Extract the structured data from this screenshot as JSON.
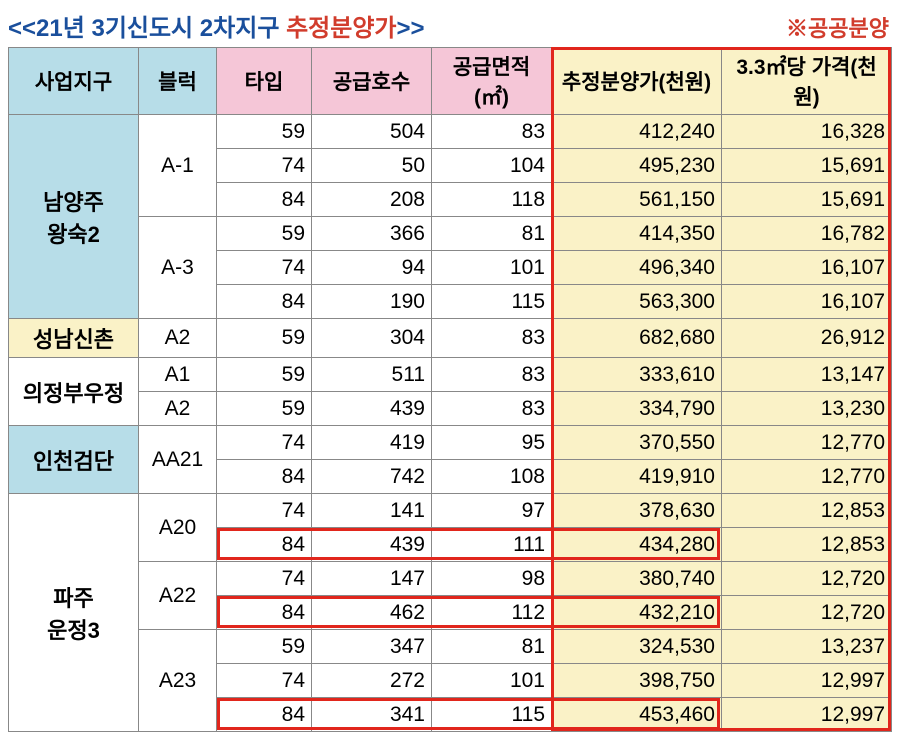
{
  "title_prefix": "<<21년 3기신도시 2차지구 ",
  "title_accent": "추정분양가",
  "title_suffix": ">>",
  "note": "※공공분양",
  "headers": {
    "district": "사업지구",
    "block": "블럭",
    "type": "타입",
    "units": "공급호수",
    "area": "공급면적(㎡)",
    "price": "추정분양가(천원)",
    "per33": "3.3㎡당 가격(천원)"
  },
  "districts": [
    {
      "name": "남양주\n왕숙2",
      "cls": "dist-blue",
      "blocks": [
        {
          "name": "A-1",
          "rows": [
            {
              "type": "59",
              "units": "504",
              "area": "83",
              "price": "412,240",
              "per": "16,328"
            },
            {
              "type": "74",
              "units": "50",
              "area": "104",
              "price": "495,230",
              "per": "15,691"
            },
            {
              "type": "84",
              "units": "208",
              "area": "118",
              "price": "561,150",
              "per": "15,691"
            }
          ]
        },
        {
          "name": "A-3",
          "rows": [
            {
              "type": "59",
              "units": "366",
              "area": "81",
              "price": "414,350",
              "per": "16,782"
            },
            {
              "type": "74",
              "units": "94",
              "area": "101",
              "price": "496,340",
              "per": "16,107"
            },
            {
              "type": "84",
              "units": "190",
              "area": "115",
              "price": "563,300",
              "per": "16,107"
            }
          ]
        }
      ]
    },
    {
      "name": "성남신촌",
      "cls": "dist-cream",
      "blocks": [
        {
          "name": "A2",
          "rows": [
            {
              "type": "59",
              "units": "304",
              "area": "83",
              "price": "682,680",
              "per": "26,912"
            }
          ]
        }
      ]
    },
    {
      "name": "의정부우정",
      "cls": "dist-white",
      "blocks": [
        {
          "name": "A1",
          "rows": [
            {
              "type": "59",
              "units": "511",
              "area": "83",
              "price": "333,610",
              "per": "13,147"
            }
          ]
        },
        {
          "name": "A2",
          "rows": [
            {
              "type": "59",
              "units": "439",
              "area": "83",
              "price": "334,790",
              "per": "13,230"
            }
          ]
        }
      ]
    },
    {
      "name": "인천검단",
      "cls": "dist-blue",
      "blocks": [
        {
          "name": "AA21",
          "rows": [
            {
              "type": "74",
              "units": "419",
              "area": "95",
              "price": "370,550",
              "per": "12,770"
            },
            {
              "type": "84",
              "units": "742",
              "area": "108",
              "price": "419,910",
              "per": "12,770"
            }
          ]
        }
      ]
    },
    {
      "name": "파주\n운정3",
      "cls": "dist-white",
      "blocks": [
        {
          "name": "A20",
          "rows": [
            {
              "type": "74",
              "units": "141",
              "area": "97",
              "price": "378,630",
              "per": "12,853"
            },
            {
              "type": "84",
              "units": "439",
              "area": "111",
              "price": "434,280",
              "per": "12,853",
              "hl": true
            }
          ]
        },
        {
          "name": "A22",
          "rows": [
            {
              "type": "74",
              "units": "147",
              "area": "98",
              "price": "380,740",
              "per": "12,720"
            },
            {
              "type": "84",
              "units": "462",
              "area": "112",
              "price": "432,210",
              "per": "12,720",
              "hl": true
            }
          ]
        },
        {
          "name": "A23",
          "rows": [
            {
              "type": "59",
              "units": "347",
              "area": "81",
              "price": "324,530",
              "per": "13,237"
            },
            {
              "type": "74",
              "units": "272",
              "area": "101",
              "price": "398,750",
              "per": "12,997"
            },
            {
              "type": "84",
              "units": "341",
              "area": "115",
              "price": "453,460",
              "per": "12,997",
              "hl": true
            }
          ]
        }
      ]
    }
  ]
}
